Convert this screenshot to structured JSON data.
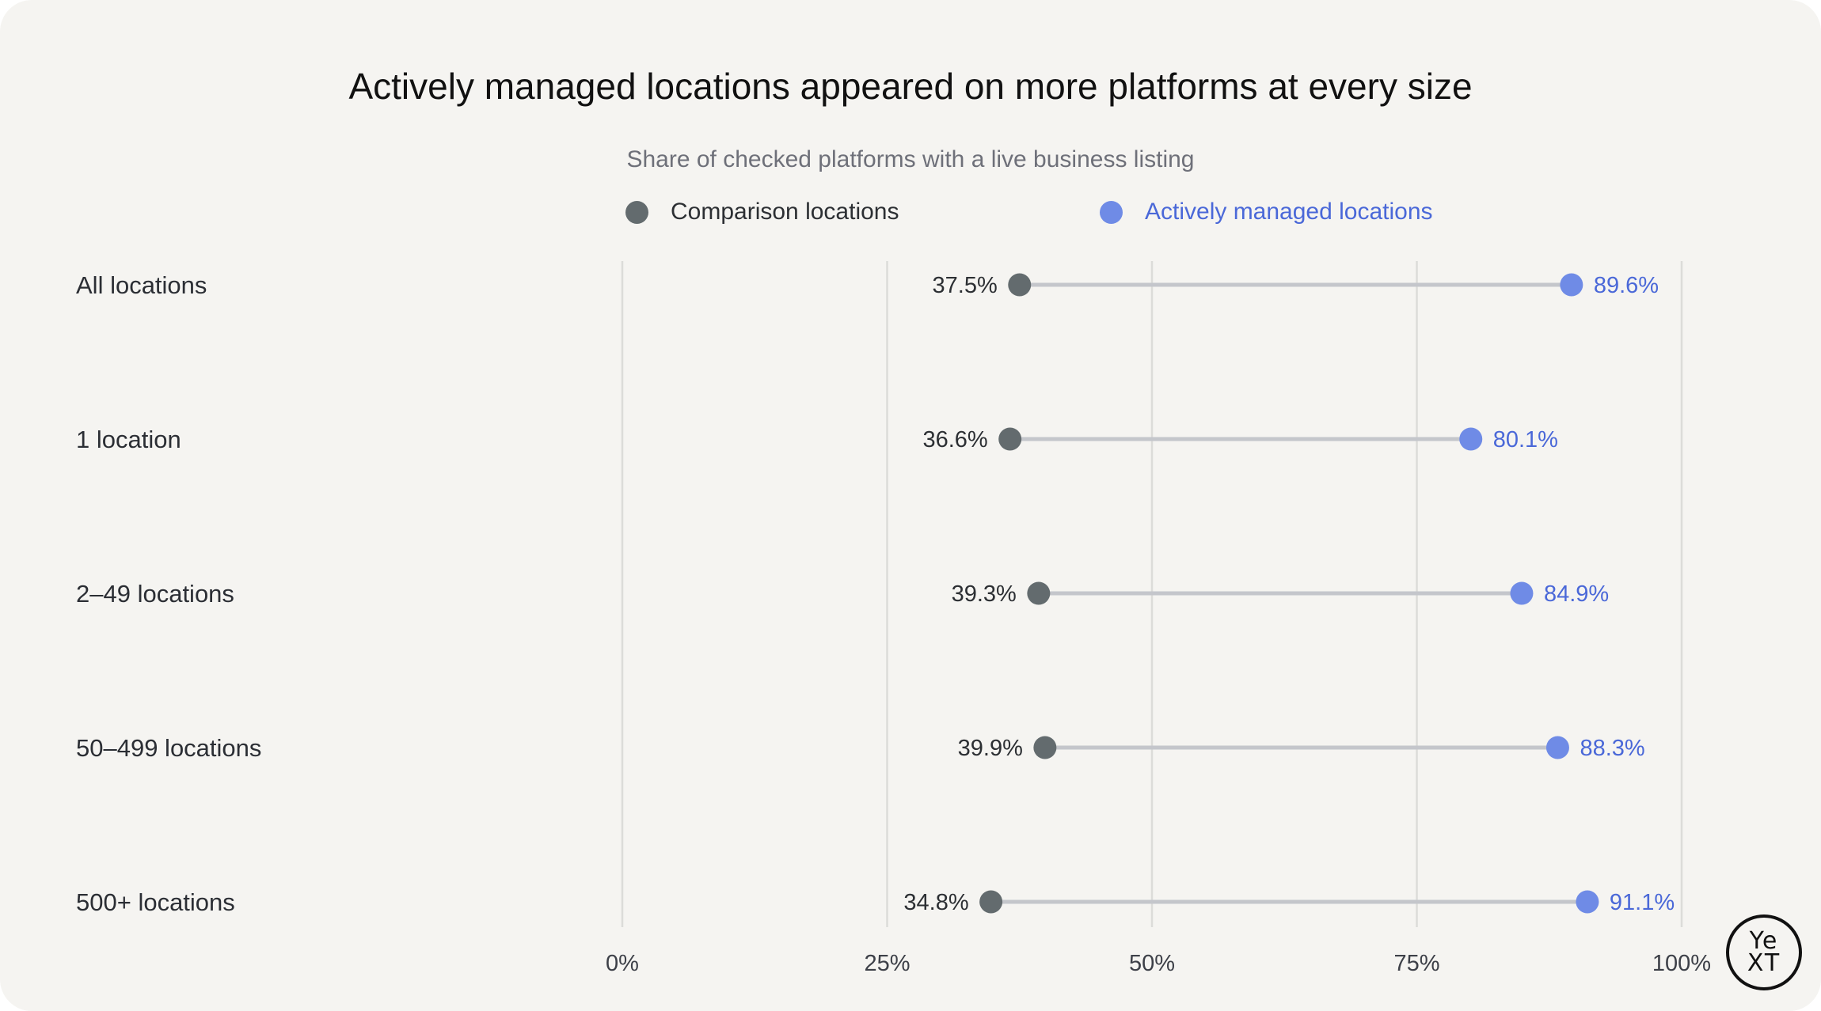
{
  "title": "Actively managed locations appeared on more platforms at every size",
  "subtitle": "Share of checked platforms with a live business listing",
  "colors": {
    "comparison": "#636b6e",
    "managed": "#6f8be6",
    "managed_text": "#4a68d8",
    "connector": "#c4c6cb",
    "grid": "#dcdcd9"
  },
  "logo": {
    "top": "Ye",
    "bottom": "XT"
  },
  "chart_data": {
    "type": "dumbbell",
    "title": "Actively managed locations appeared on more platforms at every size",
    "subtitle": "Share of checked platforms with a live business listing",
    "xlim": [
      0,
      100
    ],
    "x_ticks": [
      0,
      25,
      50,
      75,
      100
    ],
    "x_tick_labels": [
      "0%",
      "25%",
      "50%",
      "75%",
      "100%"
    ],
    "grid": "vertical",
    "legend_position": "top-center",
    "categories": [
      "All locations",
      "1 location",
      "2–49 locations",
      "50–499 locations",
      "500+ locations"
    ],
    "series": [
      {
        "name": "Comparison locations",
        "color": "#636b6e",
        "values": [
          37.5,
          36.6,
          39.3,
          39.9,
          34.8
        ],
        "labels": [
          "37.5%",
          "36.6%",
          "39.3%",
          "39.9%",
          "34.8%"
        ]
      },
      {
        "name": "Actively managed locations",
        "color": "#6f8be6",
        "values": [
          89.6,
          80.1,
          84.9,
          88.3,
          91.1
        ],
        "labels": [
          "89.6%",
          "80.1%",
          "84.9%",
          "88.3%",
          "91.1%"
        ]
      }
    ]
  }
}
